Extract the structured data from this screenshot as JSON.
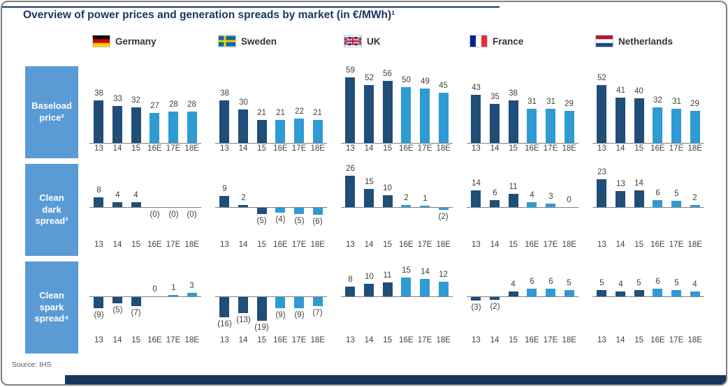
{
  "title": "Overview of power prices and generation spreads by market (in €/MWh)¹",
  "source": "Source: IHS",
  "colors": {
    "historical_bar": "#1F4E79",
    "forecast_bar": "#2E9BD5",
    "row_label_bg": "#5B9BD5",
    "title_text": "#17375E",
    "footer_bar": "#17375E",
    "axis_line": "#808080"
  },
  "chart_data": {
    "type": "bar",
    "unit": "€/MWh",
    "categories": [
      "13",
      "14",
      "15",
      "16E",
      "17E",
      "18E"
    ],
    "negative_format": "values in parentheses are shown below the axis",
    "bar_color_rule": "13-15 dark blue (historical), 16E-18E light blue (estimates)",
    "markets": [
      {
        "name": "Germany"
      },
      {
        "name": "Sweden"
      },
      {
        "name": "UK"
      },
      {
        "name": "France"
      },
      {
        "name": "Netherlands"
      }
    ],
    "rows": [
      {
        "label": "Baseload price²",
        "series": [
          {
            "market": "Germany",
            "values": [
              38,
              33,
              32,
              27,
              28,
              28
            ],
            "labels": [
              "38",
              "33",
              "32",
              "27",
              "28",
              "28"
            ]
          },
          {
            "market": "Sweden",
            "values": [
              38,
              30,
              21,
              21,
              22,
              21
            ],
            "labels": [
              "38",
              "30",
              "21",
              "21",
              "22",
              "21"
            ]
          },
          {
            "market": "UK",
            "values": [
              59,
              52,
              56,
              50,
              49,
              45
            ],
            "labels": [
              "59",
              "52",
              "56",
              "50",
              "49",
              "45"
            ]
          },
          {
            "market": "France",
            "values": [
              43,
              35,
              38,
              31,
              31,
              29
            ],
            "labels": [
              "43",
              "35",
              "38",
              "31",
              "31",
              "29"
            ]
          },
          {
            "market": "Netherlands",
            "values": [
              52,
              41,
              40,
              32,
              31,
              29
            ],
            "labels": [
              "52",
              "41",
              "40",
              "32",
              "31",
              "29"
            ]
          }
        ]
      },
      {
        "label": "Clean dark spread³",
        "series": [
          {
            "market": "Germany",
            "values": [
              8,
              4,
              4,
              0,
              0,
              0
            ],
            "labels": [
              "8",
              "4",
              "4",
              "(0)",
              "(0)",
              "(0)"
            ]
          },
          {
            "market": "Sweden",
            "values": [
              9,
              2,
              -5,
              -4,
              -5,
              -6
            ],
            "labels": [
              "9",
              "2",
              "(5)",
              "(4)",
              "(5)",
              "(6)"
            ]
          },
          {
            "market": "UK",
            "values": [
              26,
              15,
              10,
              2,
              1,
              -2
            ],
            "labels": [
              "26",
              "15",
              "10",
              "2",
              "1",
              "(2)"
            ]
          },
          {
            "market": "France",
            "values": [
              14,
              6,
              11,
              4,
              3,
              0
            ],
            "labels": [
              "14",
              "6",
              "11",
              "4",
              "3",
              "0"
            ]
          },
          {
            "market": "Netherlands",
            "values": [
              23,
              13,
              14,
              6,
              5,
              2
            ],
            "labels": [
              "23",
              "13",
              "14",
              "6",
              "5",
              "2"
            ]
          }
        ]
      },
      {
        "label": "Clean spark spread⁴",
        "series": [
          {
            "market": "Germany",
            "values": [
              -9,
              -5,
              -7,
              0,
              1,
              3
            ],
            "labels": [
              "(9)",
              "(5)",
              "(7)",
              "0",
              "1",
              "3"
            ]
          },
          {
            "market": "Sweden",
            "values": [
              -16,
              -13,
              -19,
              -9,
              -9,
              -7
            ],
            "labels": [
              "(16)",
              "(13)",
              "(19)",
              "(9)",
              "(9)",
              "(7)"
            ]
          },
          {
            "market": "UK",
            "values": [
              8,
              10,
              11,
              15,
              14,
              12
            ],
            "labels": [
              "8",
              "10",
              "11",
              "15",
              "14",
              "12"
            ]
          },
          {
            "market": "France",
            "values": [
              -3,
              -2,
              4,
              6,
              6,
              5
            ],
            "labels": [
              "(3)",
              "(2)",
              "4",
              "6",
              "6",
              "5"
            ]
          },
          {
            "market": "Netherlands",
            "values": [
              5,
              4,
              5,
              6,
              5,
              4
            ],
            "labels": [
              "5",
              "4",
              "5",
              "6",
              "5",
              "4"
            ]
          }
        ]
      }
    ]
  }
}
